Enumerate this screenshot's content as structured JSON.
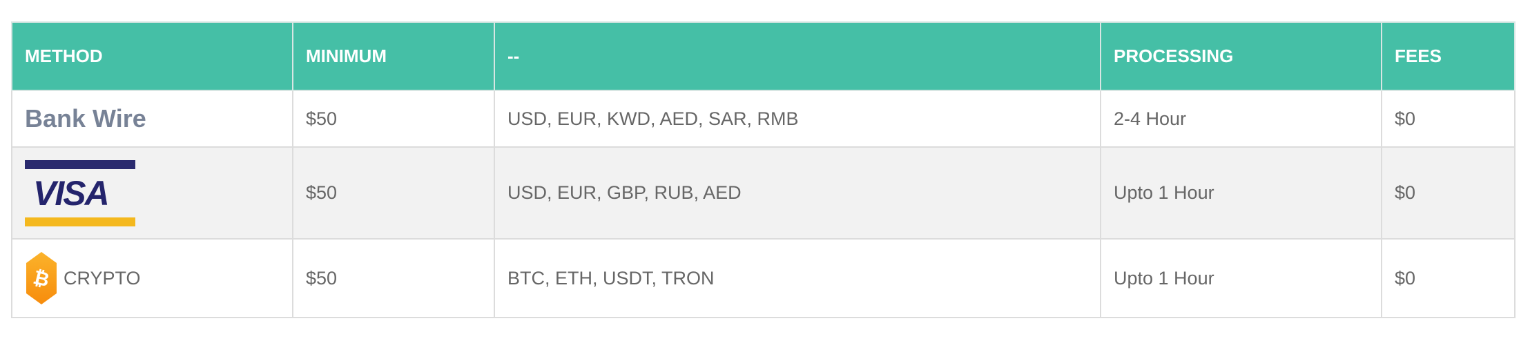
{
  "table": {
    "headers": [
      "METHOD",
      "MINIMUM",
      "--",
      "PROCESSING",
      "FEES"
    ],
    "rows": [
      {
        "method": "Bank Wire",
        "minimum": "$50",
        "currencies": "USD, EUR, KWD, AED, SAR, RMB",
        "processing": "2-4 Hour",
        "fees": "$0"
      },
      {
        "method": "VISA",
        "minimum": "$50",
        "currencies": "USD, EUR, GBP, RUB, AED",
        "processing": "Upto 1 Hour",
        "fees": "$0"
      },
      {
        "method": "CRYPTO",
        "minimum": "$50",
        "currencies": "BTC, ETH, USDT, TRON",
        "processing": "Upto 1 Hour",
        "fees": "$0"
      }
    ]
  },
  "colors": {
    "header": "#45bfa6",
    "visa_blue": "#2a2a6e",
    "visa_gold": "#f4b81e",
    "bitcoin": "#f7931a"
  },
  "icons": {
    "crypto": "bitcoin-icon"
  }
}
